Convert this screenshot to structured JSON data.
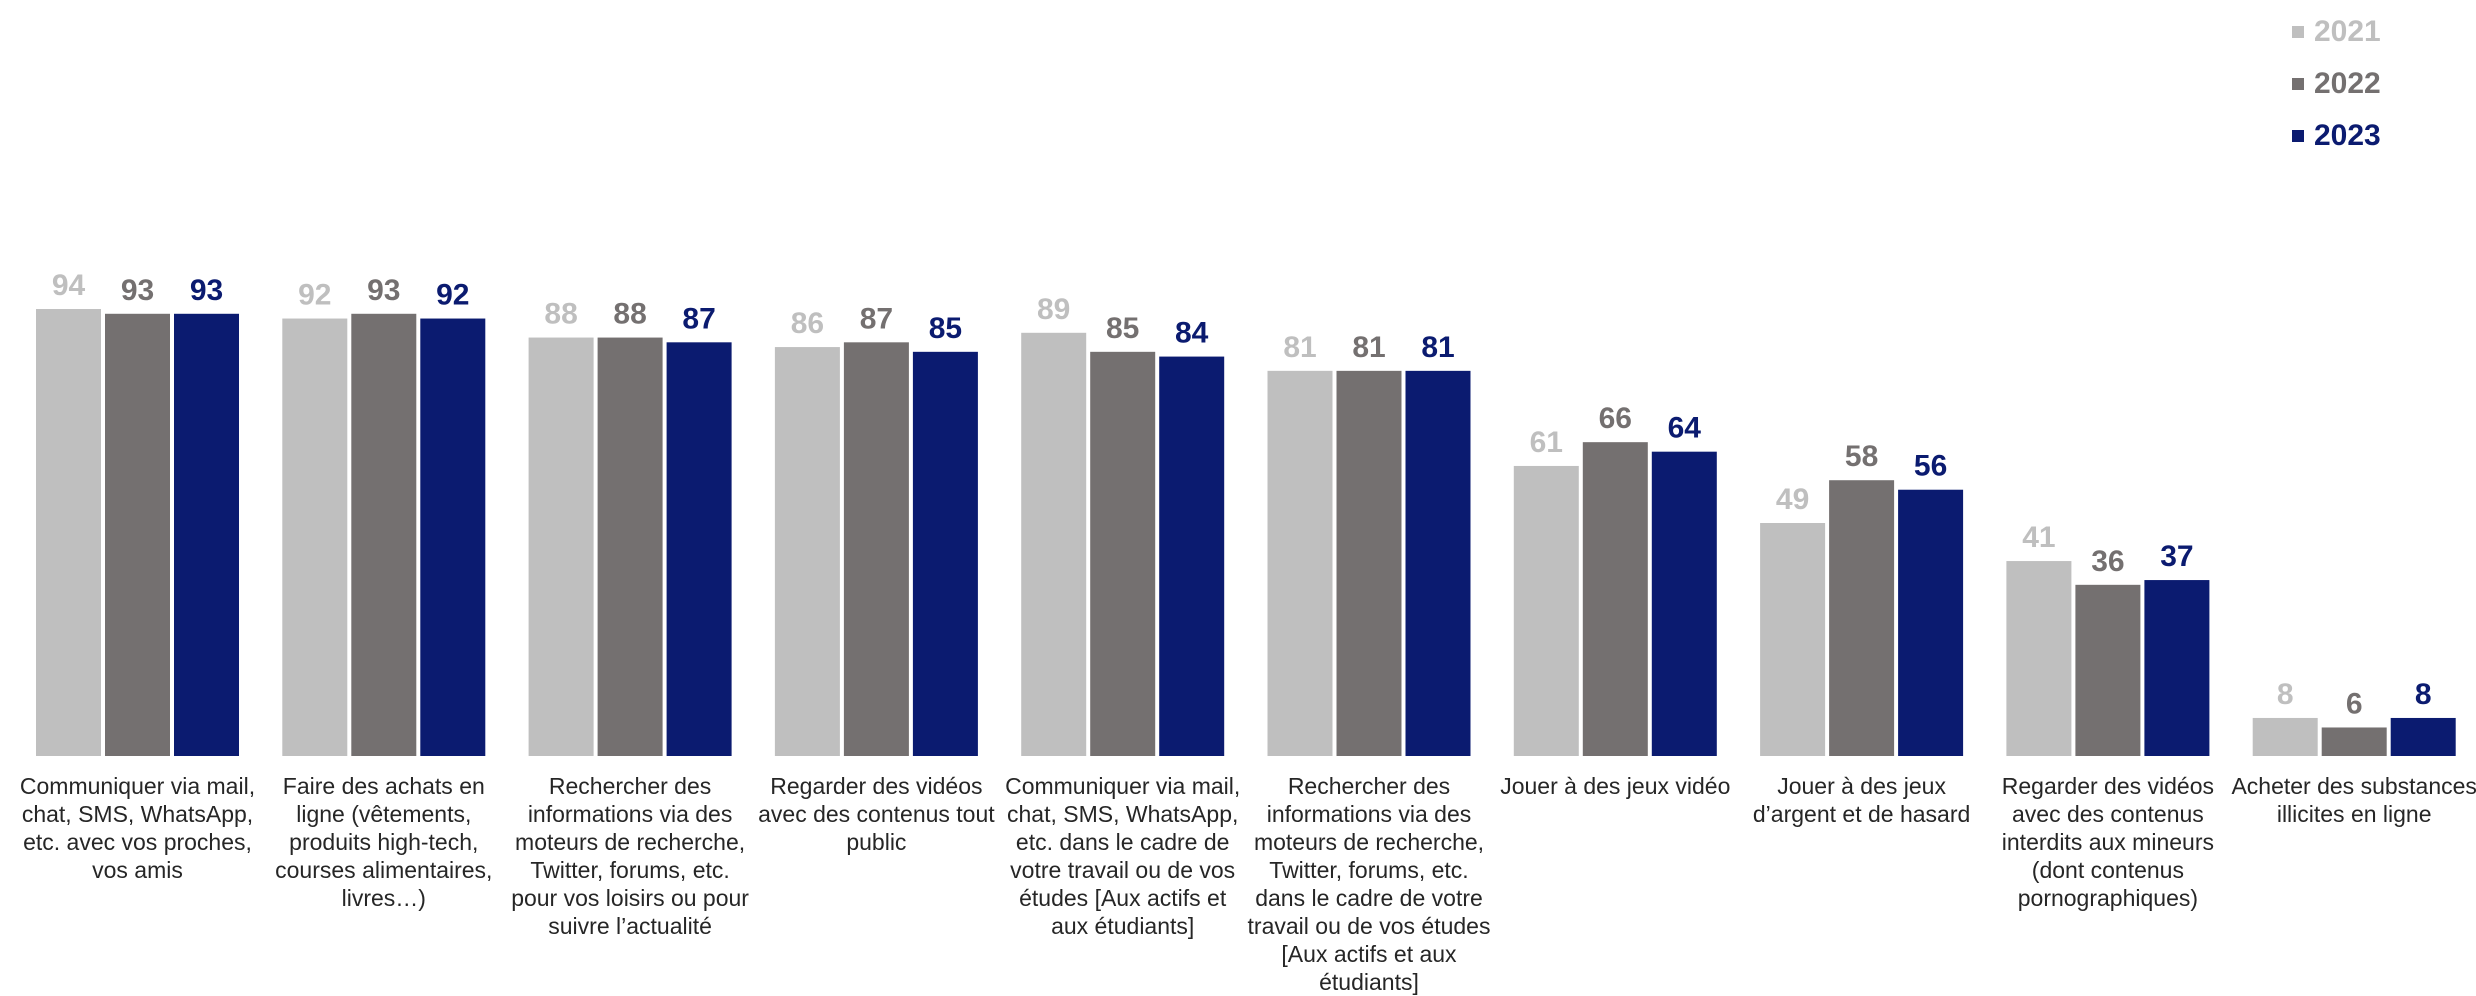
{
  "chart_data": {
    "type": "bar",
    "categories": [
      "Communiquer via mail, chat, SMS, WhatsApp, etc. avec vos proches, vos amis",
      "Faire des achats en ligne (vêtements, produits high-tech, courses alimentaires, livres…)",
      "Rechercher des informations via des moteurs de recherche, Twitter, forums, etc. pour vos loisirs ou pour suivre l’actualité",
      "Regarder des vidéos avec des contenus tout public",
      "Communiquer via mail, chat, SMS, WhatsApp, etc. dans le cadre de votre travail ou de vos études [Aux actifs et aux étudiants]",
      "Rechercher des informations via des moteurs de recherche, Twitter, forums, etc. dans le cadre de votre travail ou de vos études [Aux actifs et aux étudiants]",
      "Jouer à des jeux vidéo",
      "Jouer à des jeux d’argent et de hasard",
      "Regarder des vidéos avec des contenus interdits aux mineurs (dont contenus pornographiques)",
      "Acheter des substances illicites en ligne"
    ],
    "series": [
      {
        "name": "2021",
        "color": "#bfbfbf",
        "values": [
          94,
          92,
          88,
          86,
          89,
          81,
          61,
          49,
          41,
          8
        ]
      },
      {
        "name": "2022",
        "color": "#747070",
        "values": [
          93,
          93,
          88,
          87,
          85,
          81,
          66,
          58,
          36,
          6
        ]
      },
      {
        "name": "2023",
        "color": "#0b1b70",
        "values": [
          93,
          92,
          87,
          85,
          84,
          81,
          64,
          56,
          37,
          8
        ]
      }
    ],
    "legend_position": "top-right",
    "ylim": [
      0,
      100
    ],
    "grid": false,
    "title": "",
    "xlabel": "",
    "ylabel": ""
  }
}
